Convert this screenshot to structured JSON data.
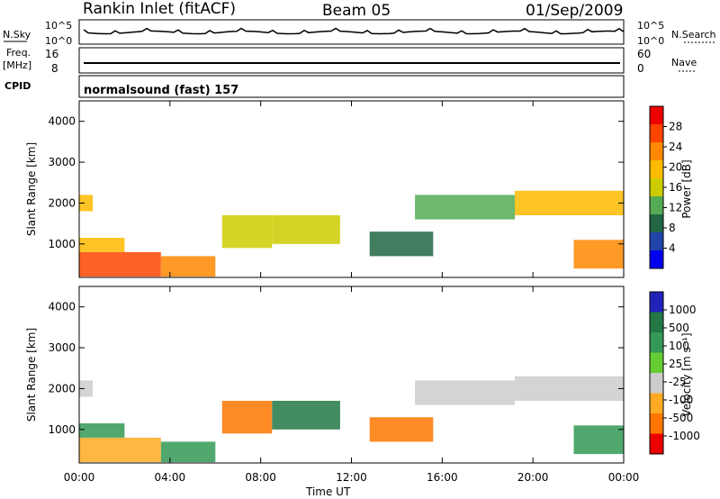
{
  "header": {
    "station": "Rankin Inlet (fitACF)",
    "beam": "Beam 05",
    "date": "01/Sep/2009"
  },
  "top_panels": {
    "nsky_label": "N.Sky",
    "nsearch_label": "N.Search",
    "noise_ticks": [
      "10^5",
      "10^0"
    ],
    "freq_label_1": "Freq.",
    "freq_label_2": "[MHz]",
    "freq_ticks": [
      "16",
      "8"
    ],
    "nave_label": "Nave",
    "nave_ticks": [
      "60",
      "0"
    ],
    "cpid_label": "CPID",
    "cpid_text": "normalsound (fast) 157"
  },
  "chart_data": [
    {
      "type": "heatmap",
      "title": "",
      "xlabel": "",
      "ylabel": "Slant Range [km]",
      "x_ticks": [
        "00:00",
        "04:00",
        "08:00",
        "12:00",
        "16:00",
        "20:00",
        "00:00"
      ],
      "xlim_hours": [
        0,
        24
      ],
      "y_ticks": [
        1000,
        2000,
        3000,
        4000
      ],
      "ylim": [
        180,
        4500
      ],
      "colorbar": {
        "label": "Power [dB]",
        "ticks": [
          "28",
          "24",
          "20",
          "16",
          "12",
          "8",
          "4"
        ],
        "colors": [
          "#ee0000",
          "#ff4400",
          "#ff8800",
          "#ffbb00",
          "#cccc00",
          "#55aa55",
          "#226644",
          "#2244aa",
          "#0000ee"
        ]
      },
      "regions": [
        {
          "t0": 0.0,
          "t1": 3.6,
          "r0": 200,
          "r1": 800,
          "level": 28
        },
        {
          "t0": 3.6,
          "t1": 6.0,
          "r0": 200,
          "r1": 700,
          "level": 22
        },
        {
          "t0": 0.0,
          "t1": 2.0,
          "r0": 800,
          "r1": 1150,
          "level": 18
        },
        {
          "t0": 0.0,
          "t1": 0.6,
          "r0": 1800,
          "r1": 2200,
          "level": 20
        },
        {
          "t0": 6.3,
          "t1": 8.5,
          "r0": 900,
          "r1": 1700,
          "level": 16
        },
        {
          "t0": 8.5,
          "t1": 11.5,
          "r0": 1000,
          "r1": 1700,
          "level": 14
        },
        {
          "t0": 12.8,
          "t1": 15.6,
          "r0": 700,
          "r1": 1300,
          "level": 6
        },
        {
          "t0": 14.8,
          "t1": 19.2,
          "r0": 1600,
          "r1": 2200,
          "level": 10
        },
        {
          "t0": 19.2,
          "t1": 24.0,
          "r0": 1700,
          "r1": 2300,
          "level": 20
        },
        {
          "t0": 21.8,
          "t1": 24.0,
          "r0": 400,
          "r1": 1100,
          "level": 24
        }
      ]
    },
    {
      "type": "heatmap",
      "title": "",
      "xlabel": "Time UT",
      "ylabel": "Slant Range [km]",
      "x_ticks": [
        "00:00",
        "04:00",
        "08:00",
        "12:00",
        "16:00",
        "20:00",
        "00:00"
      ],
      "xlim_hours": [
        0,
        24
      ],
      "y_ticks": [
        1000,
        2000,
        3000,
        4000
      ],
      "ylim": [
        180,
        4500
      ],
      "colorbar": {
        "label": "Velocity [m s⁻¹]",
        "ticks": [
          "1000",
          "500",
          "100",
          "25",
          "-25",
          "-100",
          "-500",
          "-1000"
        ],
        "colors": [
          "#2222bb",
          "#227744",
          "#339955",
          "#66cc33",
          "#cccccc",
          "#ffaa22",
          "#ff7700",
          "#ee0000"
        ]
      },
      "regions": [
        {
          "t0": 0.0,
          "t1": 3.6,
          "r0": 200,
          "r1": 800,
          "level": -60
        },
        {
          "t0": 3.6,
          "t1": 6.0,
          "r0": 200,
          "r1": 700,
          "level": 60
        },
        {
          "t0": 0.0,
          "t1": 2.0,
          "r0": 800,
          "r1": 1150,
          "level": 200
        },
        {
          "t0": 0.0,
          "t1": 0.6,
          "r0": 1800,
          "r1": 2200,
          "level": 0
        },
        {
          "t0": 6.3,
          "t1": 8.5,
          "r0": 900,
          "r1": 1700,
          "level": -200
        },
        {
          "t0": 8.5,
          "t1": 11.5,
          "r0": 1000,
          "r1": 1700,
          "level": 300
        },
        {
          "t0": 12.8,
          "t1": 15.6,
          "r0": 700,
          "r1": 1300,
          "level": -150
        },
        {
          "t0": 14.8,
          "t1": 19.2,
          "r0": 1600,
          "r1": 2200,
          "level": 0
        },
        {
          "t0": 19.2,
          "t1": 24.0,
          "r0": 1700,
          "r1": 2300,
          "level": 0
        },
        {
          "t0": 21.8,
          "t1": 24.0,
          "r0": 400,
          "r1": 1100,
          "level": 150
        }
      ]
    }
  ]
}
